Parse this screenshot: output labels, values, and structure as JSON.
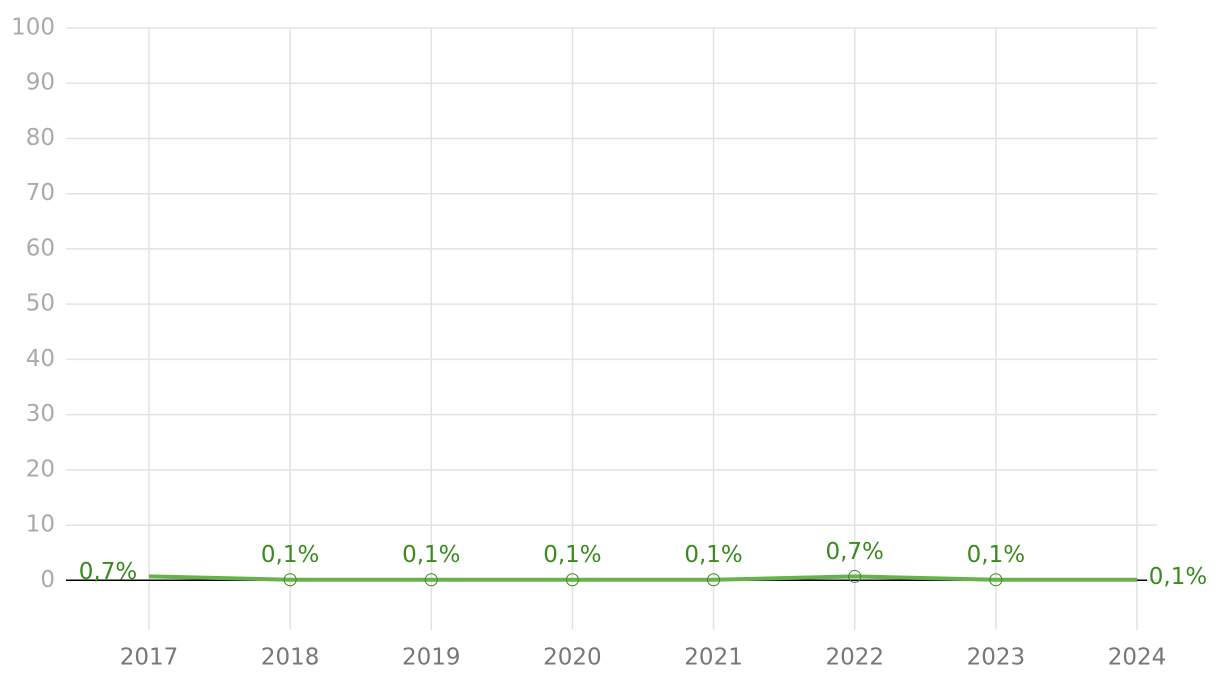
{
  "chart_data": {
    "type": "line",
    "categories": [
      "2017",
      "2018",
      "2019",
      "2020",
      "2021",
      "2022",
      "2023",
      "2024"
    ],
    "series": [
      {
        "color": "#6ab04c",
        "label_color": "#3a8a1f",
        "values": [
          0.7,
          0.1,
          0.1,
          0.1,
          0.1,
          0.7,
          0.1,
          0.1
        ],
        "value_labels": [
          "0,7%",
          "0,1%",
          "0,1%",
          "0,1%",
          "0,1%",
          "0,7%",
          "0,1%",
          "0,1%"
        ]
      }
    ],
    "ylim": [
      -9,
      100
    ],
    "yticks": [
      0,
      10,
      20,
      30,
      40,
      50,
      60,
      70,
      80,
      90,
      100
    ],
    "grid": true
  }
}
